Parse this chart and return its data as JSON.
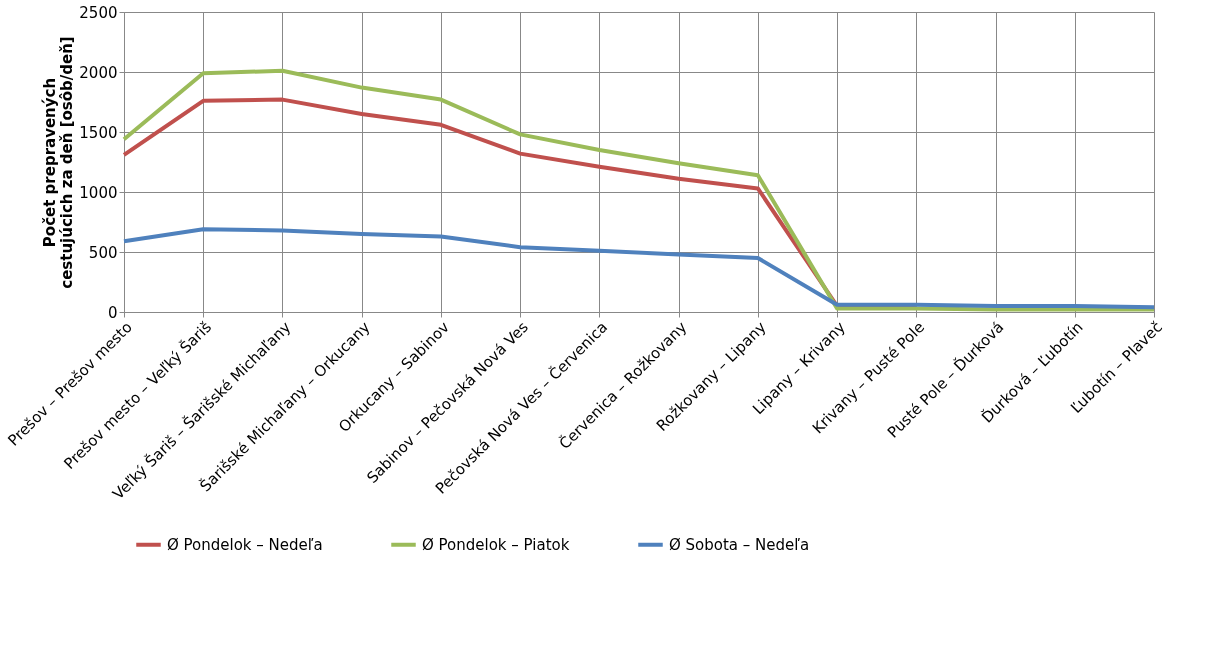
{
  "chart_data": {
    "type": "line",
    "ylabel": "Počet prepravených cestujúcich za deň [osôb/deň]",
    "categories": [
      "Prešov – Prešov mesto",
      "Prešov mesto – Veľký Šariš",
      "Veľký Šariš – Šarišské Michaľany",
      "Šarišské Michaľany – Orkucany",
      "Orkucany – Sabinov",
      "Sabinov – Pečovská Nová Ves",
      "Pečovská Nová Ves – Červenica",
      "Červenica – Rožkovany",
      "Rožkovany – Lipany",
      "Lipany – Krivany",
      "Krivany – Pusté Pole",
      "Pusté Pole – Ďurková",
      "Ďurková – Ľubotín",
      "Ľubotín – Plaveč"
    ],
    "series": [
      {
        "name": "Ø Pondelok – Nedeľa",
        "color": "#c0504d",
        "values": [
          1310,
          1760,
          1770,
          1650,
          1560,
          1320,
          1210,
          1110,
          1030,
          50,
          40,
          null,
          null,
          null
        ]
      },
      {
        "name": "Ø Pondelok – Piatok",
        "color": "#9bbb59",
        "values": [
          1440,
          1990,
          2010,
          1870,
          1770,
          1480,
          1350,
          1240,
          1140,
          30,
          30,
          20,
          20,
          20
        ]
      },
      {
        "name": "Ø Sobota – Nedeľa",
        "color": "#4f81bd",
        "values": [
          590,
          690,
          680,
          650,
          630,
          540,
          510,
          480,
          450,
          60,
          60,
          50,
          50,
          40
        ]
      }
    ],
    "ylim": [
      0,
      2500
    ],
    "yticks": [
      0,
      500,
      1000,
      1500,
      2000,
      2500
    ],
    "grid": true,
    "legend": "bottom",
    "marker": "none",
    "line_style": "solid"
  }
}
